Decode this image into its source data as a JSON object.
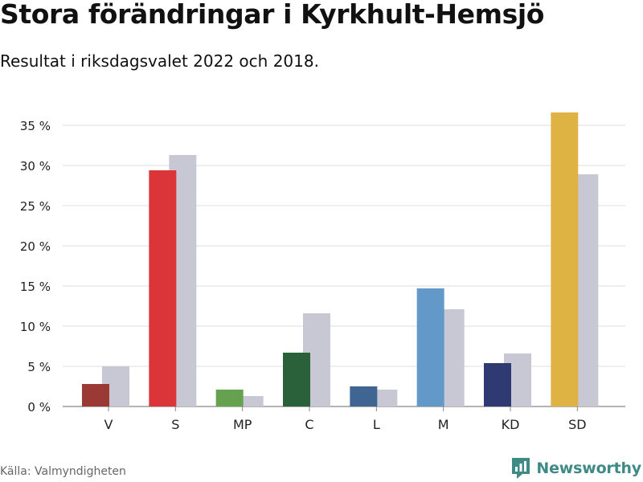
{
  "title": "Stora förändringar i Kyrkhult-Hemsjö",
  "subtitle": "Resultat i riksdagsvalet 2022 och 2018.",
  "source": "Källa: Valmyndigheten",
  "brand": {
    "name": "Newsworthy",
    "icon": "newsworthy-logo-icon",
    "color": "#3f8a86"
  },
  "chart_data": {
    "type": "bar",
    "categories": [
      "V",
      "S",
      "MP",
      "C",
      "L",
      "M",
      "KD",
      "SD"
    ],
    "series": [
      {
        "values": [
          2.8,
          29.4,
          2.1,
          6.7,
          2.5,
          14.7,
          5.4,
          36.6
        ],
        "colors": [
          "#9b3a35",
          "#dc3539",
          "#65a14e",
          "#2a613a",
          "#3f6593",
          "#6399c8",
          "#2f3a73",
          "#deb343"
        ]
      },
      {
        "values": [
          5.0,
          31.3,
          1.3,
          11.6,
          2.1,
          12.1,
          6.6,
          28.9
        ],
        "colors": [
          "#c8c8d4",
          "#c8c8d4",
          "#c8c8d4",
          "#c8c8d4",
          "#c8c8d4",
          "#c8c8d4",
          "#c8c8d4",
          "#c8c8d4"
        ]
      }
    ],
    "ylim": [
      0,
      35
    ],
    "yticks": [
      0,
      5,
      10,
      15,
      20,
      25,
      30,
      35
    ],
    "ytick_labels": [
      "0 %",
      "5 %",
      "10 %",
      "15 %",
      "20 %",
      "25 %",
      "30 %",
      "35 %"
    ],
    "xlabel": "",
    "ylabel": "",
    "grid": true,
    "legend": "none"
  }
}
